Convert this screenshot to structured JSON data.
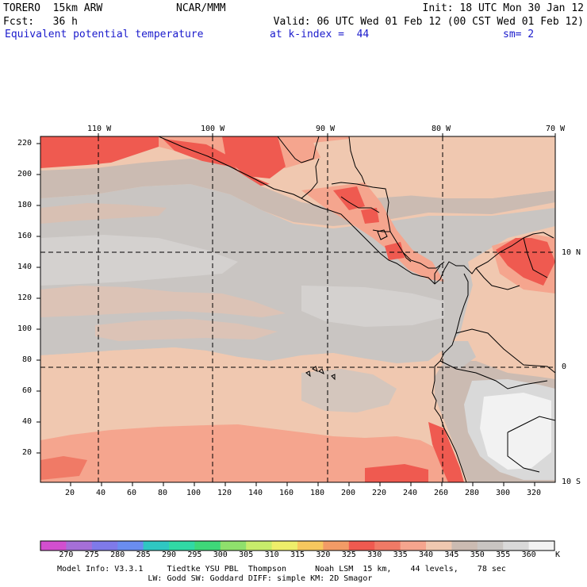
{
  "header": {
    "model": "TORERO  15km ARW",
    "center": "NCAR/MMM",
    "init": "Init: 18 UTC Mon 30 Jan 12",
    "fcst": "Fcst:   36 h",
    "valid": "Valid: 06 UTC Wed 01 Feb 12 (00 CST Wed 01 Feb 12)",
    "field": "Equivalent potential temperature",
    "level": "at k-index =  44",
    "smooth": "sm= 2"
  },
  "map": {
    "lon_labels": [
      "110 W",
      "100 W",
      "90 W",
      "80 W",
      "70 W"
    ],
    "lat_labels": [
      "10 N",
      "0",
      "10 S"
    ],
    "y_ticks": [
      "220",
      "200",
      "180",
      "160",
      "140",
      "120",
      "100",
      "80",
      "60",
      "40",
      "20"
    ],
    "x_ticks": [
      "20",
      "40",
      "60",
      "80",
      "100",
      "120",
      "140",
      "160",
      "180",
      "200",
      "220",
      "240",
      "260",
      "280",
      "300",
      "320"
    ],
    "colors": {
      "gray_light": "#d9d9d9",
      "gray_mid": "#c9c5c2",
      "gray_warm": "#cbbbb2",
      "peach": "#f0c8b0",
      "salmon": "#f5a58e",
      "red": "#ef5a50",
      "white": "#f2f2f2"
    }
  },
  "colorbar": {
    "labels": [
      "270",
      "275",
      "280",
      "285",
      "290",
      "295",
      "300",
      "305",
      "310",
      "315",
      "320",
      "325",
      "330",
      "335",
      "340",
      "345",
      "350",
      "355",
      "360"
    ],
    "unit": "K",
    "colors": [
      "#d24fcf",
      "#a56fd8",
      "#7f7ae9",
      "#6a8df0",
      "#2fc7c2",
      "#31d9a5",
      "#3ed879",
      "#8fe06c",
      "#c7ec6b",
      "#eeee6a",
      "#f7c75e",
      "#f29b66",
      "#ef5a50",
      "#f07a66",
      "#f5a58e",
      "#f0c8b0",
      "#cbbbb2",
      "#c9c5c2",
      "#d9d9d9",
      "#f2f2f2"
    ]
  },
  "footer": {
    "line1": "Model Info: V3.3.1     Tiedtke YSU PBL  Thompson      Noah LSM  15 km,    44 levels,    78 sec",
    "line2": "                   LW: Godd SW: Goddard DIFF: simple KM: 2D Smagor"
  }
}
